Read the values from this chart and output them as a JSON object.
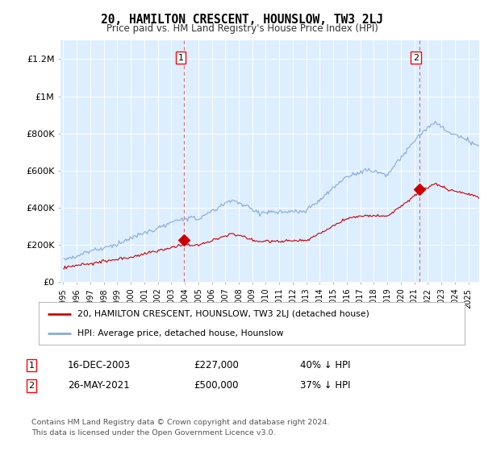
{
  "title": "20, HAMILTON CRESCENT, HOUNSLOW, TW3 2LJ",
  "subtitle": "Price paid vs. HM Land Registry's House Price Index (HPI)",
  "legend_line1": "20, HAMILTON CRESCENT, HOUNSLOW, TW3 2LJ (detached house)",
  "legend_line2": "HPI: Average price, detached house, Hounslow",
  "footnote1": "Contains HM Land Registry data © Crown copyright and database right 2024.",
  "footnote2": "This data is licensed under the Open Government Licence v3.0.",
  "annotation1_date": "16-DEC-2003",
  "annotation1_price": "£227,000",
  "annotation1_hpi": "40% ↓ HPI",
  "annotation2_date": "26-MAY-2021",
  "annotation2_price": "£500,000",
  "annotation2_hpi": "37% ↓ HPI",
  "sold_color": "#cc0000",
  "hpi_color": "#88aadd",
  "vline_color": "#dd6666",
  "plot_bg_color": "#ddeeff",
  "background_color": "#ffffff",
  "ylim": [
    0,
    1300000
  ],
  "yticks": [
    0,
    200000,
    400000,
    600000,
    800000,
    1000000,
    1200000
  ],
  "ytick_labels": [
    "£0",
    "£200K",
    "£400K",
    "£600K",
    "£800K",
    "£1M",
    "£1.2M"
  ],
  "sale1_year": 2003.958,
  "sale1_price": 227000,
  "sale2_year": 2021.375,
  "sale2_price": 500000
}
